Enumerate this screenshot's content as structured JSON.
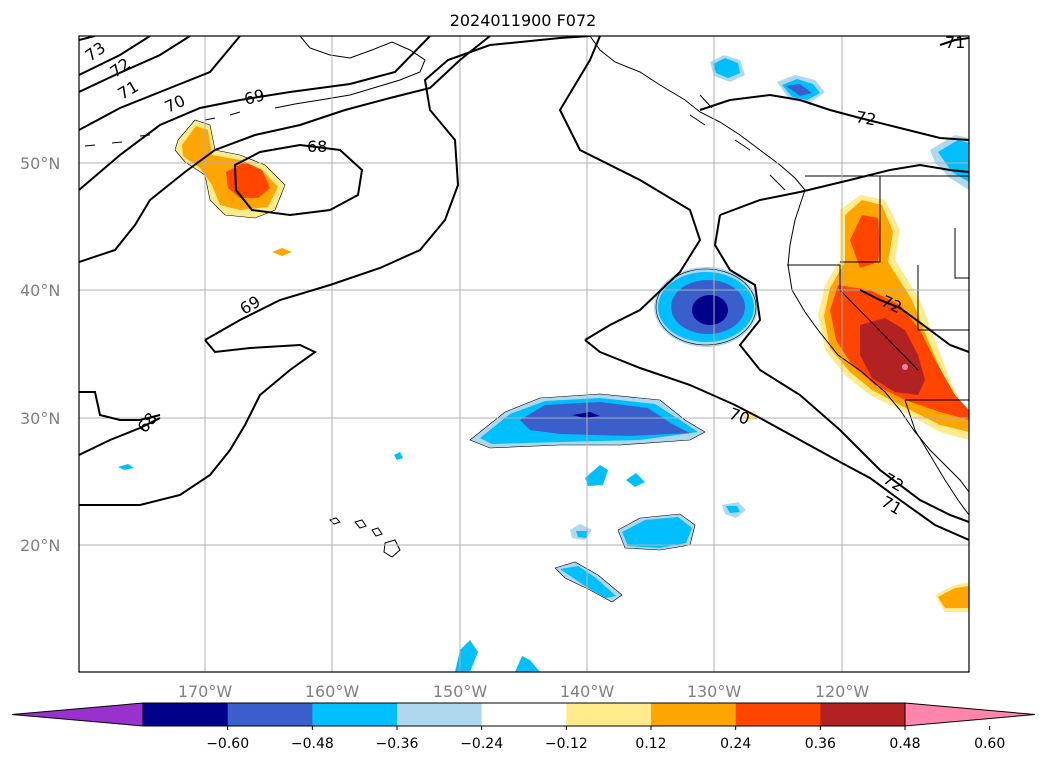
{
  "title": "2024011900 F072",
  "lat_labels": [
    "50°N",
    "40°N",
    "30°N",
    "20°N"
  ],
  "lon_labels": [
    "170°W",
    "160°W",
    "150°W",
    "140°W",
    "130°W",
    "120°W"
  ],
  "contour_labels": [
    "73",
    "72",
    "71",
    "70",
    "69",
    "68",
    "69",
    "68",
    "72",
    "70",
    "72",
    "71",
    "71",
    "72"
  ],
  "colorbar": {
    "ticks": [
      "−0.60",
      "−0.48",
      "−0.36",
      "−0.24",
      "−0.12",
      "0.12",
      "0.24",
      "0.36",
      "0.48",
      "0.60"
    ],
    "colors": [
      "#9932cc",
      "#00008b",
      "#3a5fcd",
      "#00bfff",
      "#add8f0",
      "#ffffff",
      "#ffeb8c",
      "#ffa500",
      "#ff4500",
      "#b22222",
      "#ff85ad"
    ]
  }
}
